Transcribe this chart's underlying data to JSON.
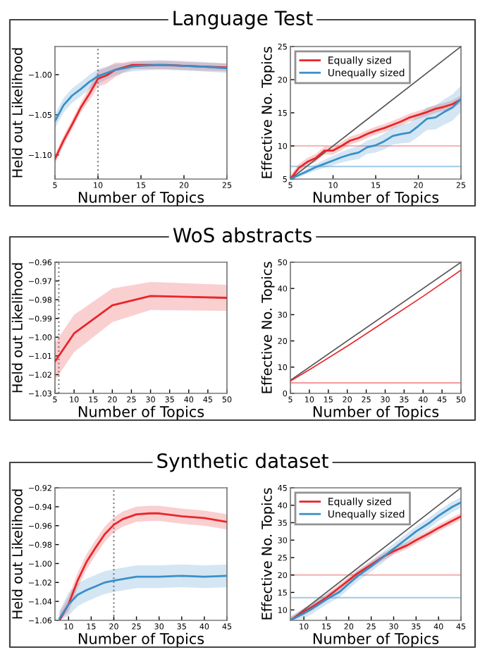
{
  "chart_data": [
    {
      "type": "line",
      "title": "Language Test",
      "xlabel": "Number of Topics",
      "ylabel": "Held out Likelihood",
      "xlim": [
        5,
        25
      ],
      "xticks": [
        5,
        10,
        15,
        20,
        25
      ],
      "ylim": [
        -1.13,
        -0.965
      ],
      "yticks": [
        {
          "value": -1.1,
          "label": "−1.10"
        },
        {
          "value": -1.05,
          "label": "−1.05"
        },
        {
          "value": -1.0,
          "label": "−1.00"
        }
      ],
      "ref_lines": [
        {
          "axis": "x",
          "value": 10,
          "color": "#888888",
          "line_style": "dotted"
        }
      ],
      "series": [
        {
          "color": "#e8262a",
          "x": [
            5,
            6,
            7,
            8,
            9,
            10,
            11,
            12,
            13,
            14,
            15,
            16,
            17,
            18,
            20,
            22,
            25
          ],
          "values": [
            -1.105,
            -1.082,
            -1.062,
            -1.041,
            -1.024,
            -1.005,
            -1.001,
            -0.994,
            -0.991,
            -0.988,
            -0.988,
            -0.988,
            -0.988,
            -0.988,
            -0.989,
            -0.99,
            -0.991
          ],
          "lower": [
            -1.111,
            -1.088,
            -1.068,
            -1.047,
            -1.032,
            -1.015,
            -1.011,
            -1.003,
            -0.997,
            -0.993,
            -0.993,
            -0.993,
            -0.993,
            -0.993,
            -0.994,
            -0.995,
            -0.996
          ],
          "upper": [
            -1.099,
            -1.076,
            -1.056,
            -1.035,
            -1.016,
            -0.995,
            -0.991,
            -0.985,
            -0.985,
            -0.983,
            -0.983,
            -0.983,
            -0.983,
            -0.983,
            -0.984,
            -0.985,
            -0.986
          ]
        },
        {
          "color": "#3a8fc8",
          "x": [
            5,
            6,
            7,
            8,
            9,
            10,
            11,
            12,
            13,
            14,
            15,
            17,
            20,
            22,
            25
          ],
          "values": [
            -1.058,
            -1.038,
            -1.026,
            -1.018,
            -1.009,
            -1.002,
            -0.998,
            -0.994,
            -0.992,
            -0.99,
            -0.989,
            -0.988,
            -0.989,
            -0.99,
            -0.992
          ],
          "lower": [
            -1.067,
            -1.047,
            -1.035,
            -1.027,
            -1.018,
            -1.011,
            -1.006,
            -1.001,
            -0.998,
            -0.996,
            -0.995,
            -0.994,
            -0.995,
            -0.996,
            -0.998
          ],
          "upper": [
            -1.049,
            -1.029,
            -1.017,
            -1.009,
            -1.0,
            -0.993,
            -0.99,
            -0.987,
            -0.986,
            -0.984,
            -0.983,
            -0.982,
            -0.983,
            -0.984,
            -0.986
          ]
        }
      ]
    },
    {
      "type": "line",
      "xlabel": "Number of Topics",
      "ylabel": "Effective No. Topics",
      "xlim": [
        5,
        25
      ],
      "xticks": [
        5,
        10,
        15,
        20,
        25
      ],
      "ylim": [
        5,
        25
      ],
      "yticks": [
        5,
        10,
        15,
        20,
        25
      ],
      "legend": "top left",
      "ref_lines": [
        {
          "axis": "y",
          "value": 10,
          "color": "#f5b5b5"
        },
        {
          "axis": "y",
          "value": 6.9,
          "color": "#a9cfe8"
        }
      ],
      "series": [
        {
          "color": "#555555",
          "x": [
            5,
            25
          ],
          "values": [
            5,
            25
          ]
        },
        {
          "name": "Equally sized",
          "color": "#e8262a",
          "x": [
            5,
            6,
            7,
            8,
            9,
            10,
            11,
            12,
            13,
            14,
            15,
            16,
            17,
            18,
            19,
            20,
            21,
            22,
            23,
            24,
            25
          ],
          "values": [
            5,
            6.7,
            7.6,
            8.2,
            9.3,
            9.3,
            10,
            10.8,
            11.2,
            11.8,
            12.3,
            12.7,
            13.2,
            13.7,
            14.3,
            14.7,
            15.1,
            15.6,
            15.9,
            16.3,
            17
          ],
          "lower": [
            5,
            6.1,
            7.0,
            7.6,
            8.7,
            8.7,
            9.4,
            10.2,
            10.6,
            11.2,
            11.7,
            12.1,
            12.6,
            13.1,
            13.7,
            14.1,
            14.5,
            15.0,
            15.3,
            15.7,
            16.4
          ],
          "upper": [
            5.6,
            7.3,
            8.2,
            8.8,
            9.9,
            9.9,
            10.6,
            11.4,
            11.8,
            12.4,
            12.9,
            13.3,
            13.8,
            14.3,
            14.9,
            15.3,
            15.7,
            16.2,
            16.5,
            16.9,
            17.6
          ]
        },
        {
          "name": "Unequally sized",
          "color": "#3a8fc8",
          "x": [
            5,
            6,
            7,
            8,
            9,
            10,
            11,
            12,
            13,
            14,
            15,
            16,
            17,
            18,
            19,
            20,
            21,
            22,
            23,
            24,
            25
          ],
          "values": [
            5,
            5.6,
            6.2,
            6.8,
            7.3,
            7.8,
            8.3,
            8.7,
            9.0,
            9.8,
            10.1,
            10.7,
            11.5,
            11.8,
            12.0,
            13.0,
            14.1,
            14.3,
            15.1,
            15.8,
            17.1
          ],
          "lower": [
            5,
            5.3,
            5.8,
            6.3,
            6.7,
            7.1,
            7.5,
            7.8,
            8.0,
            8.8,
            9.0,
            9.5,
            10.2,
            10.4,
            10.5,
            11.4,
            12.4,
            12.5,
            13.2,
            13.8,
            15.1
          ],
          "upper": [
            5,
            5.9,
            6.6,
            7.3,
            7.9,
            8.5,
            9.1,
            9.6,
            10.0,
            10.8,
            11.2,
            11.9,
            12.8,
            13.2,
            13.5,
            14.6,
            15.8,
            16.1,
            17.0,
            17.8,
            19.1
          ]
        }
      ]
    },
    {
      "type": "line",
      "title": "WoS abstracts",
      "xlabel": "Number of Topics",
      "ylabel": "Held out Likelihood",
      "xlim": [
        5,
        50
      ],
      "xticks": [
        5,
        10,
        15,
        20,
        25,
        30,
        35,
        40,
        45,
        50
      ],
      "ylim": [
        -1.03,
        -0.96
      ],
      "yticks": [
        {
          "value": -1.03,
          "label": "−1.03"
        },
        {
          "value": -1.02,
          "label": "−1.02"
        },
        {
          "value": -1.01,
          "label": "−1.01"
        },
        {
          "value": -1.0,
          "label": "−1.00"
        },
        {
          "value": -0.99,
          "label": "−0.99"
        },
        {
          "value": -0.98,
          "label": "−0.98"
        },
        {
          "value": -0.97,
          "label": "−0.97"
        },
        {
          "value": -0.96,
          "label": "−0.96"
        }
      ],
      "ref_lines": [
        {
          "axis": "x",
          "value": 6,
          "color": "#888888",
          "line_style": "dotted"
        }
      ],
      "series": [
        {
          "color": "#e8262a",
          "x": [
            5,
            10,
            20,
            30,
            50
          ],
          "values": [
            -1.013,
            -0.998,
            -0.983,
            -0.978,
            -0.979
          ],
          "lower": [
            -1.023,
            -1.008,
            -0.992,
            -0.9855,
            -0.986
          ],
          "upper": [
            -1.003,
            -0.988,
            -0.974,
            -0.9705,
            -0.972
          ]
        }
      ]
    },
    {
      "type": "line",
      "xlabel": "Number of Topics",
      "ylabel": "Effective No. Topics",
      "xlim": [
        5,
        50
      ],
      "xticks": [
        5,
        10,
        15,
        20,
        25,
        30,
        35,
        40,
        45,
        50
      ],
      "ylim": [
        0,
        50
      ],
      "yticks": [
        0,
        10,
        20,
        30,
        40,
        50
      ],
      "ref_lines": [
        {
          "axis": "y",
          "value": 4,
          "color": "#f5a0a0"
        }
      ],
      "series": [
        {
          "color": "#555555",
          "x": [
            5,
            50
          ],
          "values": [
            5,
            50
          ]
        },
        {
          "color": "#e8262a",
          "x": [
            5,
            10,
            20,
            30,
            40,
            50
          ],
          "values": [
            4.7,
            9,
            18,
            27.5,
            37,
            47
          ]
        }
      ]
    },
    {
      "type": "line",
      "title": "Synthetic dataset",
      "xlabel": "Number of Topics",
      "ylabel": "Held out Likelihood",
      "xlim": [
        7,
        45
      ],
      "xticks": [
        10,
        15,
        20,
        25,
        30,
        35,
        40,
        45
      ],
      "ylim": [
        -1.06,
        -0.92
      ],
      "yticks": [
        {
          "value": -1.06,
          "label": "−1.06"
        },
        {
          "value": -1.04,
          "label": "−1.04"
        },
        {
          "value": -1.02,
          "label": "−1.02"
        },
        {
          "value": -1.0,
          "label": "−1.00"
        },
        {
          "value": -0.98,
          "label": "−0.98"
        },
        {
          "value": -0.96,
          "label": "−0.96"
        },
        {
          "value": -0.94,
          "label": "−0.94"
        },
        {
          "value": -0.92,
          "label": "−0.92"
        }
      ],
      "ref_lines": [
        {
          "axis": "x",
          "value": 20,
          "color": "#888888",
          "line_style": "dotted"
        }
      ],
      "series": [
        {
          "color": "#e8262a",
          "x": [
            8,
            10,
            12,
            14,
            16,
            18,
            20,
            22,
            25,
            28,
            30,
            35,
            40,
            45
          ],
          "values": [
            -1.06,
            -1.043,
            -1.018,
            -0.998,
            -0.983,
            -0.969,
            -0.959,
            -0.953,
            -0.948,
            -0.947,
            -0.947,
            -0.95,
            -0.952,
            -0.956
          ],
          "lower": [
            -1.06,
            -1.051,
            -1.026,
            -1.006,
            -0.991,
            -0.977,
            -0.967,
            -0.961,
            -0.956,
            -0.955,
            -0.955,
            -0.958,
            -0.96,
            -0.964
          ],
          "upper": [
            -1.052,
            -1.035,
            -1.01,
            -0.99,
            -0.975,
            -0.961,
            -0.951,
            -0.945,
            -0.94,
            -0.939,
            -0.939,
            -0.942,
            -0.944,
            -0.948
          ]
        },
        {
          "color": "#3a8fc8",
          "x": [
            8,
            10,
            12,
            14,
            16,
            18,
            20,
            25,
            30,
            35,
            40,
            45
          ],
          "values": [
            -1.058,
            -1.043,
            -1.033,
            -1.028,
            -1.024,
            -1.02,
            -1.018,
            -1.014,
            -1.014,
            -1.013,
            -1.014,
            -1.013
          ],
          "lower": [
            -1.06,
            -1.055,
            -1.045,
            -1.04,
            -1.036,
            -1.032,
            -1.03,
            -1.026,
            -1.026,
            -1.025,
            -1.026,
            -1.025
          ],
          "upper": [
            -1.05,
            -1.031,
            -1.021,
            -1.016,
            -1.012,
            -1.008,
            -1.006,
            -1.002,
            -1.002,
            -1.001,
            -1.002,
            -1.001
          ]
        }
      ]
    },
    {
      "type": "line",
      "xlabel": "Number of Topics",
      "ylabel": "Effective No. Topics",
      "xlim": [
        7,
        45
      ],
      "xticks": [
        10,
        15,
        20,
        25,
        30,
        35,
        40,
        45
      ],
      "ylim": [
        7,
        45
      ],
      "yticks": [
        10,
        15,
        20,
        25,
        30,
        35,
        40,
        45
      ],
      "legend": "top left",
      "ref_lines": [
        {
          "axis": "y",
          "value": 20,
          "color": "#f5b5b5"
        },
        {
          "axis": "y",
          "value": 13.5,
          "color": "#a9cfe8"
        }
      ],
      "series": [
        {
          "color": "#555555",
          "x": [
            7,
            45
          ],
          "values": [
            7,
            45
          ]
        },
        {
          "name": "Equally sized",
          "color": "#e8262a",
          "x": [
            7,
            10,
            12,
            15,
            18,
            20,
            22,
            25,
            28,
            30,
            33,
            35,
            38,
            40,
            43,
            45
          ],
          "values": [
            7,
            9.5,
            11,
            13.5,
            16.5,
            18.5,
            20.5,
            23,
            25.5,
            26.8,
            28.5,
            30,
            32,
            33.5,
            35.5,
            36.8
          ],
          "lower": [
            7,
            8.5,
            10,
            12.5,
            15.5,
            17.5,
            19.5,
            22,
            24.5,
            25.8,
            27.5,
            29,
            31,
            32.5,
            34.5,
            35.8
          ],
          "upper": [
            8,
            10.5,
            12,
            14.5,
            17.5,
            19.5,
            21.5,
            24,
            26.5,
            27.8,
            29.5,
            31,
            33,
            34.5,
            36.5,
            37.8
          ]
        },
        {
          "name": "Unequally sized",
          "color": "#3a8fc8",
          "x": [
            7,
            10,
            12,
            15,
            18,
            20,
            22,
            25,
            28,
            30,
            33,
            35,
            38,
            40,
            43,
            45
          ],
          "values": [
            7,
            9,
            10.5,
            13,
            15.2,
            17.5,
            19.7,
            22.5,
            25.5,
            27.5,
            30.5,
            32.5,
            35,
            37,
            39.5,
            40.8
          ],
          "lower": [
            7,
            7.5,
            9,
            11.5,
            13.7,
            16,
            18.2,
            21,
            24,
            26,
            29,
            31,
            33.5,
            35.5,
            38,
            39.3
          ],
          "upper": [
            8,
            10.5,
            12,
            14.5,
            16.7,
            19,
            21.2,
            24,
            27,
            29,
            32,
            34,
            36.5,
            38.5,
            41,
            42.3
          ]
        }
      ]
    }
  ]
}
